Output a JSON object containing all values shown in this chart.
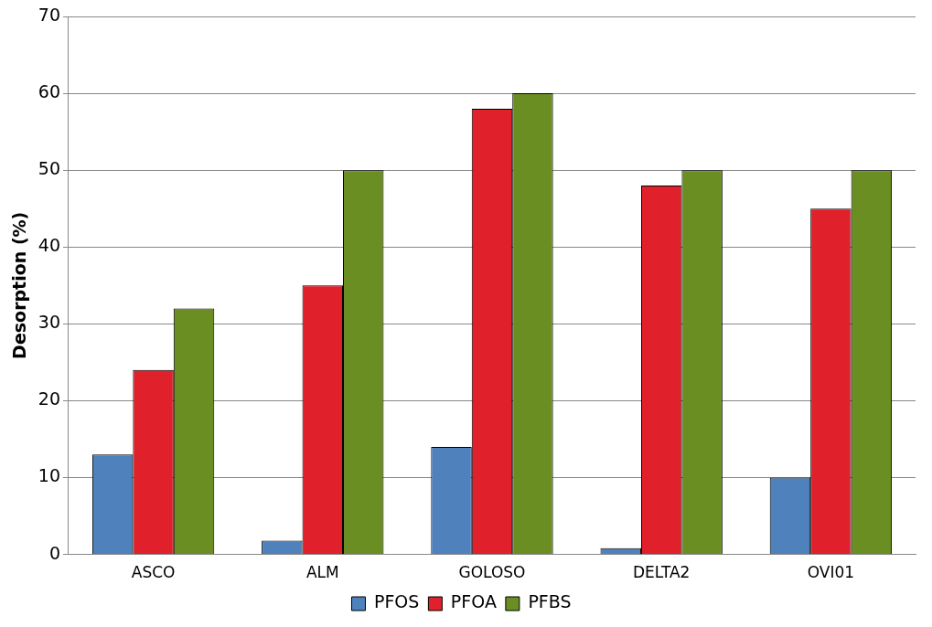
{
  "chart_data": {
    "type": "bar",
    "ylabel": "Desorption (%)",
    "categories": [
      "ASCO",
      "ALM",
      "GOLOSO",
      "DELTA2",
      "OVI01"
    ],
    "series": [
      {
        "name": "PFOS",
        "color": "#4f81bd",
        "values": [
          13,
          1.8,
          14,
          0.8,
          10
        ]
      },
      {
        "name": "PFOA",
        "color": "#e0202a",
        "values": [
          24,
          35,
          58,
          48,
          45
        ]
      },
      {
        "name": "PFBS",
        "color": "#6b8e23",
        "values": [
          32,
          50,
          60,
          50,
          50
        ]
      }
    ],
    "ylim": [
      0,
      70
    ],
    "yticks": [
      0,
      10,
      20,
      30,
      40,
      50,
      60,
      70
    ],
    "grid": "y",
    "legend": "bottom"
  }
}
